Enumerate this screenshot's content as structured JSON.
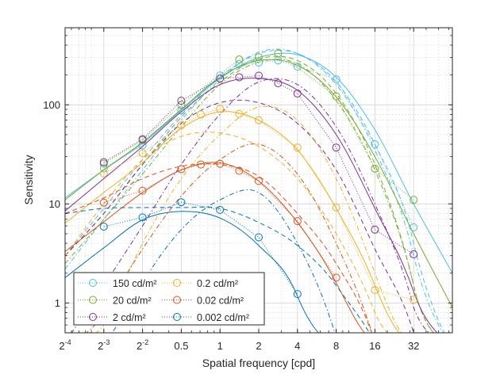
{
  "chart_data": {
    "type": "line",
    "xlabel": "Spatial frequency [cpd]",
    "ylabel": "Sensitivity",
    "xscale": "log2",
    "yscale": "log10",
    "xlim": [
      0.0625,
      64
    ],
    "ylim": [
      0.5,
      600
    ],
    "grid": true,
    "legend_position": "bottom-left",
    "x_ticks": [
      {
        "value": 0.0625,
        "base": "2",
        "sup": "-4"
      },
      {
        "value": 0.125,
        "base": "2",
        "sup": "-3"
      },
      {
        "value": 0.25,
        "base": "2",
        "sup": "-2"
      },
      {
        "value": 0.5,
        "base": "0.5",
        "sup": ""
      },
      {
        "value": 1,
        "base": "1",
        "sup": ""
      },
      {
        "value": 2,
        "base": "2",
        "sup": ""
      },
      {
        "value": 4,
        "base": "4",
        "sup": ""
      },
      {
        "value": 8,
        "base": "8",
        "sup": ""
      },
      {
        "value": 16,
        "base": "16",
        "sup": ""
      },
      {
        "value": 32,
        "base": "32",
        "sup": ""
      }
    ],
    "y_ticks": [
      {
        "value": 1,
        "label": "1"
      },
      {
        "value": 10,
        "label": "10"
      },
      {
        "value": 100,
        "label": "100"
      }
    ],
    "model_frequencies": [
      0.0625,
      0.125,
      0.25,
      0.5,
      1,
      2,
      4,
      8,
      16,
      32,
      64
    ],
    "series": [
      {
        "name": "150 cd/m²",
        "color": "#4DBEEE",
        "measured": {
          "f": [
            0.125,
            0.25,
            0.5,
            1,
            1.41,
            2,
            2.83,
            4,
            8,
            16,
            32
          ],
          "s": [
            22.8,
            39,
            88,
            198,
            257,
            267,
            281,
            243,
            181,
            40,
            5.8
          ]
        },
        "solid": [
          11.5,
          22,
          41,
          88,
          185,
          300,
          320,
          190,
          56,
          10,
          2.0
        ],
        "dashed": [
          3,
          9,
          28,
          80,
          190,
          330,
          330,
          170,
          40,
          4,
          0.02
        ],
        "dashdot": [
          2.2,
          7,
          22,
          70,
          180,
          340,
          330,
          160,
          35,
          3,
          0.02
        ]
      },
      {
        "name": "20 cd/m²",
        "color": "#77AC30",
        "measured": {
          "f": [
            0.125,
            0.25,
            0.5,
            1.41,
            2,
            2.83,
            8,
            16,
            32
          ],
          "s": [
            25.5,
            44,
            100,
            287,
            303,
            330,
            122,
            22.7,
            11
          ]
        },
        "solid": [
          11,
          22,
          42,
          90,
          190,
          280,
          250,
          120,
          30,
          5,
          0.9
        ],
        "dashed": [
          3,
          8,
          25,
          75,
          170,
          290,
          280,
          130,
          25,
          1.5,
          0.01
        ],
        "dashdot": [
          2.5,
          7,
          20,
          60,
          160,
          270,
          260,
          110,
          22,
          1.5,
          0.01
        ]
      },
      {
        "name": "2 cd/m²",
        "color": "#7E2F8E",
        "measured": {
          "f": [
            0.125,
            0.25,
            0.5,
            1,
            1.41,
            2,
            2.83,
            4,
            8,
            16,
            32
          ],
          "s": [
            26.4,
            45,
            110,
            184,
            190,
            197,
            165,
            130,
            37,
            5.5,
            3.1
          ]
        },
        "solid": [
          8.5,
          18,
          38,
          85,
          160,
          185,
          140,
          50,
          9,
          1.3,
          0.05
        ],
        "dashed": [
          3,
          8,
          25,
          65,
          105,
          105,
          65,
          22,
          3.5,
          0.5,
          0.01
        ],
        "dashdot": [
          0.4,
          1.5,
          6,
          25,
          80,
          170,
          160,
          60,
          10,
          0.9,
          0.01
        ]
      },
      {
        "name": "0.2 cd/m²",
        "color": "#EDB120",
        "measured": {
          "f": [
            0.125,
            0.25,
            0.5,
            0.71,
            1,
            1.41,
            2,
            4,
            8,
            16,
            32
          ],
          "s": [
            20.4,
            32.5,
            62,
            80,
            91,
            81,
            70,
            37,
            9.2,
            1.35,
            1.08
          ]
        },
        "solid": [
          6.4,
          13,
          26,
          58,
          85,
          70,
          35,
          9,
          1.5,
          0.1,
          0.005
        ],
        "dashed": [
          3,
          10,
          28,
          48,
          52,
          38,
          18,
          5,
          0.8,
          0.05,
          0.005
        ],
        "dashdot": [
          0.15,
          0.6,
          4,
          18,
          50,
          95,
          70,
          18,
          2,
          0.15,
          0.005
        ]
      },
      {
        "name": "0.02 cd/m²",
        "color": "#D95319",
        "measured": {
          "f": [
            0.125,
            0.25,
            0.5,
            0.71,
            1,
            1.41,
            2,
            4,
            8
          ],
          "s": [
            10.3,
            13.6,
            22.4,
            25,
            25.4,
            21.6,
            17,
            6.7,
            1.8
          ]
        },
        "solid": [
          3.3,
          6.6,
          13,
          22,
          26,
          17,
          6.5,
          1.6,
          0.2,
          0.01,
          0.001
        ],
        "dashed": [
          8,
          11.5,
          18,
          24,
          25,
          19,
          8,
          2.5,
          0.4,
          0.01,
          0.001
        ],
        "dashdot": [
          0.15,
          0.8,
          3.5,
          12,
          28,
          40,
          20,
          4,
          0.4,
          0.01,
          0.001
        ]
      },
      {
        "name": "0.002 cd/m²",
        "color": "#0072BD",
        "measured": {
          "f": [
            0.125,
            0.25,
            0.5,
            1,
            2,
            4
          ],
          "s": [
            5.9,
            7.3,
            10.4,
            8.7,
            4.6,
            1.23
          ]
        },
        "solid": [
          1.8,
          3.6,
          6.9,
          8.4,
          7.2,
          3.8,
          1.17,
          0.05,
          0.001,
          0.0001,
          0.0001
        ],
        "dashed": [
          8,
          9,
          9.2,
          9.2,
          9,
          6.5,
          3.8,
          1.5,
          0.3,
          0.01,
          0.001
        ],
        "dashdot": [
          0.05,
          0.3,
          1.6,
          5.5,
          11,
          13,
          4,
          0.45,
          0.01,
          0.001,
          0.0001
        ]
      }
    ]
  }
}
